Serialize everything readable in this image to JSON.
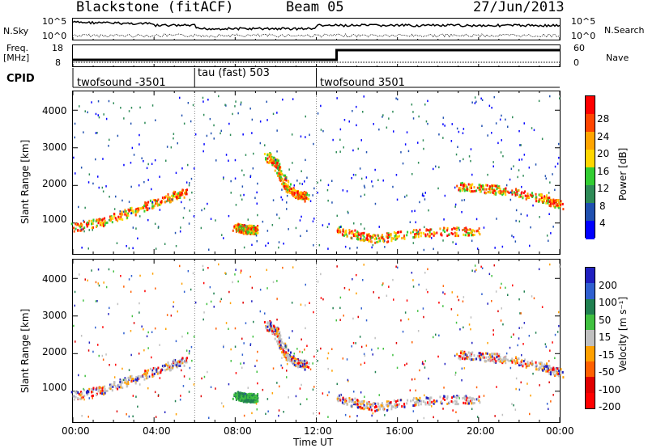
{
  "header": {
    "station": "Blackstone (fitACF)",
    "beam": "Beam 05",
    "date": "27/Jun/2013"
  },
  "top_labels": {
    "nsky": "N.Sky",
    "freq": "Freq.",
    "mhz": "[MHz]",
    "cpid": "CPID",
    "nsearch": "N.Search",
    "nave": "Nave",
    "noise_left_hi": "10^5",
    "noise_left_lo": "10^0",
    "noise_right_hi": "10^5",
    "noise_right_lo": "10^0",
    "freq_hi": "18",
    "freq_lo": "8",
    "nave_hi": "60",
    "nave_lo": "0"
  },
  "cpid_segments": [
    {
      "label": "twofsound -3501",
      "start_hour": 0
    },
    {
      "label": "tau (fast) 503",
      "start_hour": 6
    },
    {
      "label": "twofsound 3501",
      "start_hour": 12
    }
  ],
  "colors": {
    "power": [
      "#0000ff",
      "#2050b0",
      "#2e8b57",
      "#32cd32",
      "#ffd700",
      "#ffa500",
      "#ff4500",
      "#ff0000"
    ],
    "velocity": [
      "#2020c0",
      "#3060d0",
      "#208050",
      "#40c040",
      "#c0c0c0",
      "#ffa000",
      "#ff6000",
      "#e00000",
      "#ff0000"
    ]
  },
  "chart_data": [
    {
      "type": "heatmap",
      "title": "",
      "xlabel": "",
      "ylabel": "Slant Range [km]",
      "xlim_hours": [
        0,
        24
      ],
      "ylim": [
        200,
        4500
      ],
      "y_ticks": [
        "1000",
        "2000",
        "3000",
        "4000"
      ],
      "colorbar_label": "Power [dB]",
      "colorbar_ticks": [
        "4",
        "8",
        "12",
        "16",
        "20",
        "24",
        "28"
      ],
      "colorbar_range": [
        0,
        30
      ],
      "features": [
        {
          "x": [
            0,
            1,
            2,
            3,
            4,
            5,
            5.5
          ],
          "y": [
            900,
            1000,
            1150,
            1350,
            1550,
            1750,
            1850
          ]
        },
        {
          "x": [
            8,
            8.5,
            9
          ],
          "y": [
            900,
            850,
            850
          ]
        },
        {
          "x": [
            9.5,
            10,
            10.5,
            11,
            11.5
          ],
          "y": [
            2800,
            2600,
            2000,
            1800,
            1700
          ]
        },
        {
          "x": [
            13,
            14,
            15,
            16,
            18,
            20
          ],
          "y": [
            850,
            700,
            600,
            700,
            800,
            800
          ]
        },
        {
          "x": [
            19,
            21,
            23,
            24
          ],
          "y": [
            2000,
            1900,
            1700,
            1500
          ]
        }
      ]
    },
    {
      "type": "heatmap",
      "title": "",
      "xlabel": "Time UT",
      "ylabel": "Slant Range [km]",
      "xlim_hours": [
        0,
        24
      ],
      "ylim": [
        200,
        4500
      ],
      "x_ticks": [
        "00:00",
        "04:00",
        "08:00",
        "12:00",
        "16:00",
        "20:00",
        "00:00"
      ],
      "y_ticks": [
        "1000",
        "2000",
        "3000",
        "4000"
      ],
      "colorbar_label": "Velocity [m s⁻¹]",
      "colorbar_ticks": [
        "200",
        "100",
        "50",
        "15",
        "-15",
        "-50",
        "-100",
        "-200"
      ]
    }
  ]
}
